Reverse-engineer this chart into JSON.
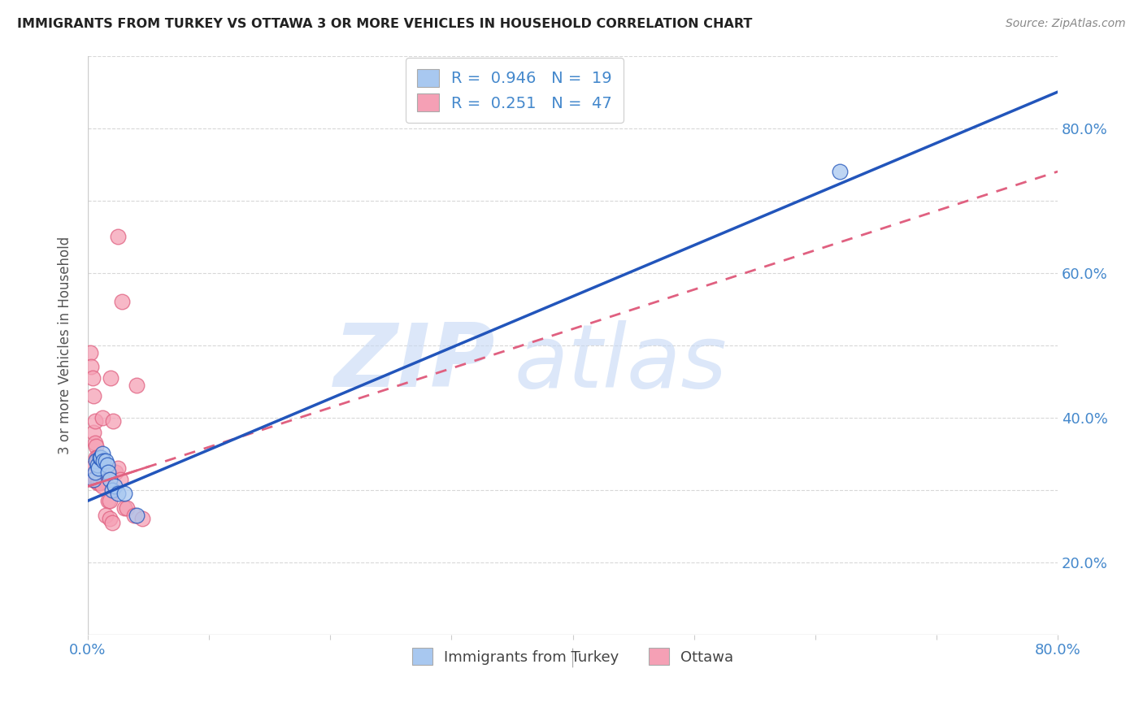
{
  "title": "IMMIGRANTS FROM TURKEY VS OTTAWA 3 OR MORE VEHICLES IN HOUSEHOLD CORRELATION CHART",
  "source": "Source: ZipAtlas.com",
  "ylabel": "3 or more Vehicles in Household",
  "xlim": [
    0.0,
    0.8
  ],
  "ylim": [
    0.0,
    0.8
  ],
  "xtick_positions": [
    0.0,
    0.1,
    0.2,
    0.3,
    0.4,
    0.5,
    0.6,
    0.7,
    0.8
  ],
  "xtick_labels": [
    "0.0%",
    "",
    "",
    "",
    "",
    "",
    "",
    "",
    "80.0%"
  ],
  "ytick_positions": [
    0.0,
    0.1,
    0.2,
    0.3,
    0.4,
    0.5,
    0.6,
    0.7,
    0.8
  ],
  "ytick_labels_right": [
    "",
    "20.0%",
    "",
    "40.0%",
    "",
    "60.0%",
    "",
    "80.0%",
    ""
  ],
  "r_blue": 0.946,
  "n_blue": 19,
  "r_pink": 0.251,
  "n_pink": 47,
  "blue_scatter_color": "#A8C8F0",
  "pink_scatter_color": "#F5A0B5",
  "blue_line_color": "#2255BB",
  "pink_line_color": "#E06080",
  "grid_color": "#D8D8D8",
  "blue_line_x0": 0.0,
  "blue_line_y0": 0.185,
  "blue_line_x1": 0.8,
  "blue_line_y1": 0.75,
  "pink_line_x0": 0.0,
  "pink_line_y0": 0.205,
  "pink_line_x1": 0.8,
  "pink_line_y1": 0.64,
  "blue_scatter_x": [
    0.005,
    0.006,
    0.007,
    0.008,
    0.009,
    0.01,
    0.011,
    0.012,
    0.013,
    0.015,
    0.016,
    0.017,
    0.018,
    0.02,
    0.022,
    0.025,
    0.03,
    0.04,
    0.62
  ],
  "blue_scatter_y": [
    0.215,
    0.225,
    0.24,
    0.235,
    0.23,
    0.245,
    0.245,
    0.25,
    0.24,
    0.24,
    0.235,
    0.225,
    0.215,
    0.2,
    0.205,
    0.195,
    0.195,
    0.165,
    0.64
  ],
  "pink_scatter_x": [
    0.002,
    0.003,
    0.004,
    0.005,
    0.005,
    0.006,
    0.006,
    0.007,
    0.007,
    0.008,
    0.008,
    0.009,
    0.009,
    0.01,
    0.01,
    0.011,
    0.012,
    0.013,
    0.014,
    0.015,
    0.016,
    0.017,
    0.018,
    0.019,
    0.021,
    0.023,
    0.025,
    0.027,
    0.03,
    0.032,
    0.038,
    0.003,
    0.004,
    0.005,
    0.006,
    0.007,
    0.008,
    0.009,
    0.01,
    0.012,
    0.015,
    0.018,
    0.02,
    0.025,
    0.028,
    0.04,
    0.045
  ],
  "pink_scatter_y": [
    0.39,
    0.37,
    0.355,
    0.33,
    0.28,
    0.295,
    0.265,
    0.26,
    0.245,
    0.245,
    0.24,
    0.235,
    0.225,
    0.225,
    0.215,
    0.225,
    0.3,
    0.23,
    0.23,
    0.23,
    0.22,
    0.185,
    0.185,
    0.355,
    0.295,
    0.225,
    0.23,
    0.215,
    0.175,
    0.175,
    0.165,
    0.23,
    0.215,
    0.215,
    0.215,
    0.215,
    0.21,
    0.21,
    0.21,
    0.205,
    0.165,
    0.16,
    0.155,
    0.55,
    0.46,
    0.345,
    0.16
  ]
}
